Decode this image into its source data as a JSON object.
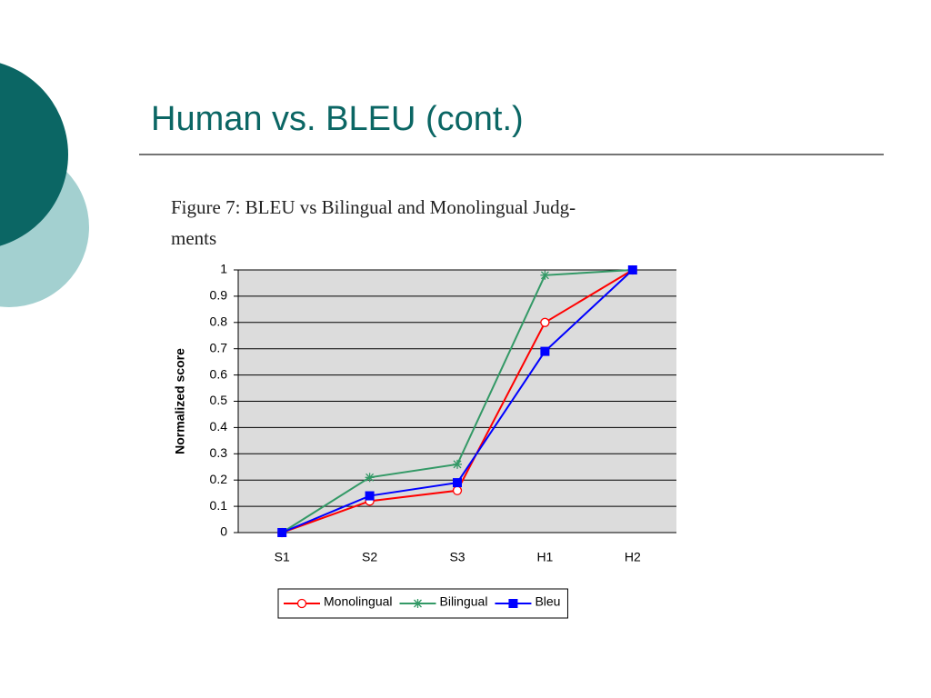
{
  "slide_title": "Human vs. BLEU (cont.)",
  "caption": [
    "Figure 7: BLEU vs Bilingual and Monolingual Judg-",
    "ments"
  ],
  "chart_data": {
    "type": "line",
    "y_label": "Normalized score",
    "categories": [
      "S1",
      "S2",
      "S3",
      "H1",
      "H2"
    ],
    "series": [
      {
        "name": "Monolingual",
        "color": "#ff0000",
        "marker": "circle",
        "values": [
          0,
          0.12,
          0.16,
          0.8,
          1
        ]
      },
      {
        "name": "Bilingual",
        "color": "#339966",
        "marker": "star",
        "values": [
          0,
          0.21,
          0.26,
          0.98,
          1
        ]
      },
      {
        "name": "Bleu",
        "color": "#0000ff",
        "marker": "square",
        "values": [
          0,
          0.14,
          0.19,
          0.69,
          1
        ]
      }
    ],
    "ylim": [
      0,
      1
    ],
    "yticks": [
      0,
      0.1,
      0.2,
      0.3,
      0.4,
      0.5,
      0.6,
      0.7,
      0.8,
      0.9,
      1
    ],
    "grid": true,
    "legend": "bottom"
  }
}
